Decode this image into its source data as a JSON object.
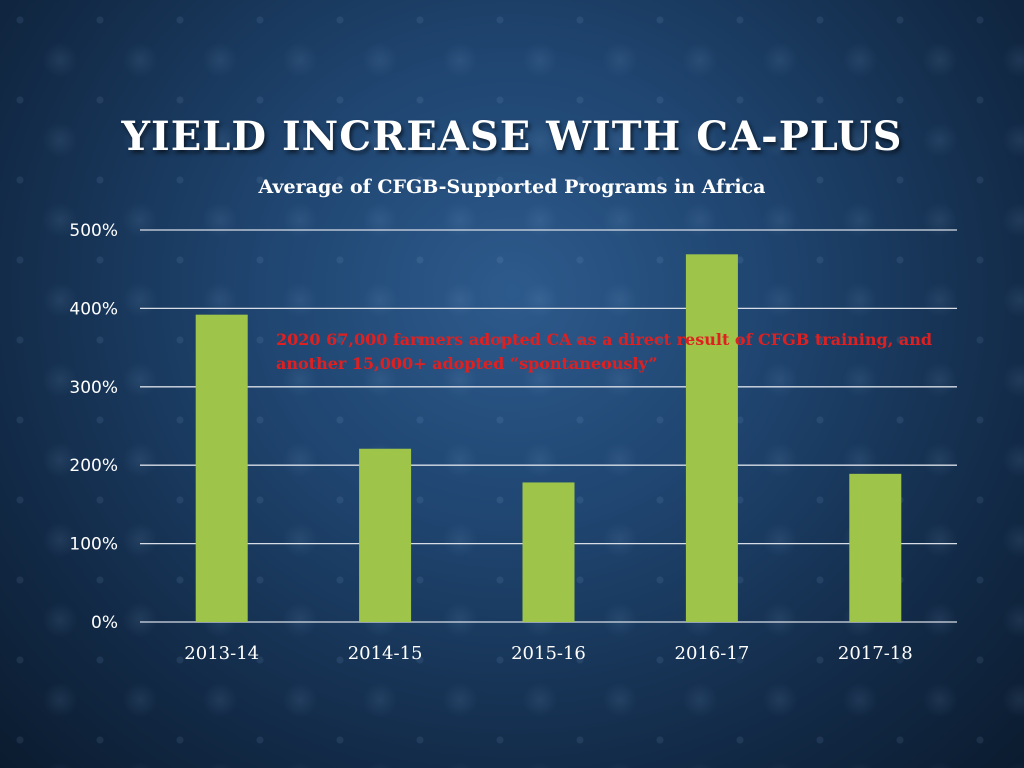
{
  "slide": {
    "title": "YIELD INCREASE WITH CA-PLUS",
    "annotation": "2020 67,000 farmers adopted CA as a direct result of CFGB training, and another 15,000+ adopted “spontaneously”"
  },
  "colors": {
    "bar": "#9ec44a",
    "grid": "#d8dde6",
    "axis_text": "#ffffff",
    "annotation": "#e02020"
  },
  "chart_data": {
    "type": "bar",
    "title": "Average of CFGB-Supported Programs in Africa",
    "categories": [
      "2013-14",
      "2014-15",
      "2015-16",
      "2016-17",
      "2017-18"
    ],
    "values": [
      392,
      221,
      178,
      469,
      189
    ],
    "ylim": [
      0,
      500
    ],
    "yticks": [
      "0%",
      "100%",
      "200%",
      "300%",
      "400%",
      "500%"
    ],
    "grid": true,
    "legend": "none"
  }
}
